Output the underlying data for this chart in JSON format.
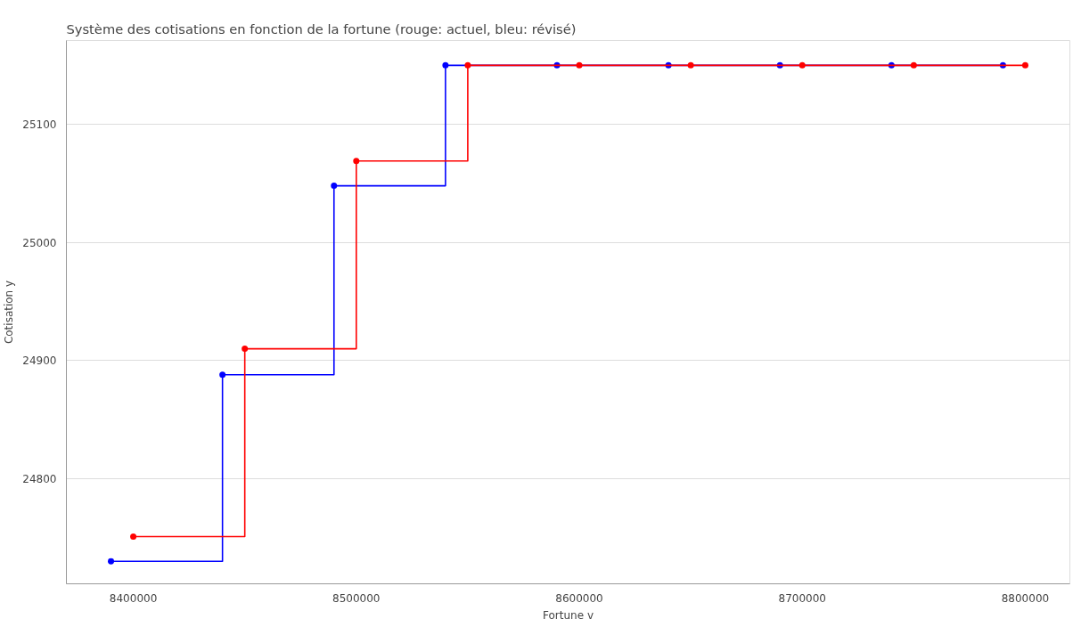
{
  "chart_data": {
    "type": "step",
    "title": "Système des cotisations en fonction de la fortune (rouge: actuel, bleu: révisé)",
    "xlabel": "Fortune v",
    "ylabel": "Cotisation y",
    "series": [
      {
        "color": "#0000ff",
        "x": [
          8390000,
          8440000,
          8490000,
          8540000,
          8590000,
          8640000,
          8690000,
          8740000,
          8790000
        ],
        "values": [
          24730,
          24888,
          25048,
          25150,
          25150,
          25150,
          25150,
          25150,
          25150
        ]
      },
      {
        "color": "#ff0000",
        "x": [
          8400000,
          8450000,
          8500000,
          8550000,
          8600000,
          8650000,
          8700000,
          8750000,
          8800000
        ],
        "values": [
          24751,
          24910,
          25069,
          25150,
          25150,
          25150,
          25150,
          25150,
          25150
        ]
      }
    ],
    "xlim": [
      8370000,
      8820000
    ],
    "ylim": [
      24711,
      25171
    ],
    "xticks": [
      8400000,
      8500000,
      8600000,
      8700000,
      8800000
    ],
    "yticks": [
      24800,
      24900,
      25000,
      25100
    ],
    "grid": "y",
    "marker": "circle",
    "line_style": "solid"
  }
}
